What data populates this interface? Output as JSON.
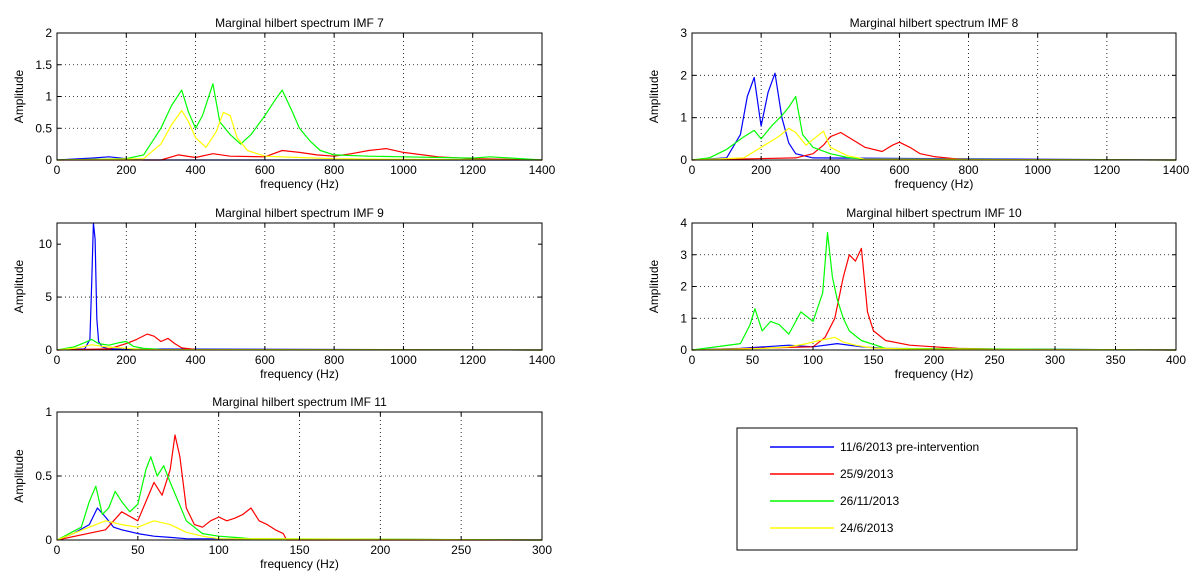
{
  "colors": {
    "pre_intervention": "#0000ff",
    "sep": "#ff0000",
    "nov": "#00ff00",
    "jun": "#ffff00",
    "grid": "#000000",
    "axes": "#000000"
  },
  "legend": {
    "entries": [
      {
        "label": "11/6/2013 pre-intervention",
        "color": "#0000ff"
      },
      {
        "label": "25/9/2013",
        "color": "#ff0000"
      },
      {
        "label": "26/11/2013",
        "color": "#00ff00"
      },
      {
        "label": "24/6/2013",
        "color": "#ffff00"
      }
    ],
    "placement": "bottom-right"
  },
  "chart_data": [
    {
      "type": "line",
      "title": "Marginal hilbert spectrum IMF 7",
      "xlabel": "frequency (Hz)",
      "ylabel": "Amplitude",
      "xlim": [
        0,
        1400
      ],
      "ylim": [
        0,
        2
      ],
      "xticks": [
        0,
        200,
        400,
        600,
        800,
        1000,
        1200,
        1400
      ],
      "yticks": [
        0,
        0.5,
        1,
        1.5,
        2
      ],
      "ytick_labels": [
        "0",
        "0.5",
        "1",
        "1.5",
        "2"
      ],
      "grid": true,
      "series": [
        {
          "name": "11/6/2013 pre-intervention",
          "color": "#0000ff",
          "x": [
            0,
            100,
            150,
            200,
            250,
            1400
          ],
          "y": [
            0,
            0.03,
            0.05,
            0.02,
            0,
            0
          ]
        },
        {
          "name": "25/9/2013",
          "color": "#ff0000",
          "x": [
            0,
            300,
            350,
            400,
            450,
            500,
            600,
            650,
            700,
            750,
            800,
            850,
            900,
            950,
            1000,
            1100,
            1200,
            1400
          ],
          "y": [
            0,
            0,
            0.08,
            0.04,
            0.1,
            0.06,
            0.05,
            0.15,
            0.12,
            0.08,
            0.06,
            0.1,
            0.15,
            0.18,
            0.12,
            0.05,
            0.02,
            0
          ]
        },
        {
          "name": "26/11/2013",
          "color": "#00ff00",
          "x": [
            0,
            200,
            250,
            300,
            330,
            360,
            380,
            400,
            420,
            450,
            470,
            500,
            530,
            560,
            600,
            630,
            650,
            680,
            700,
            730,
            760,
            800,
            900,
            1000,
            1200,
            1250,
            1400
          ],
          "y": [
            0,
            0.02,
            0.08,
            0.5,
            0.85,
            1.1,
            0.75,
            0.5,
            0.7,
            1.2,
            0.6,
            0.4,
            0.25,
            0.4,
            0.7,
            0.95,
            1.1,
            0.75,
            0.5,
            0.3,
            0.15,
            0.08,
            0.06,
            0.05,
            0.03,
            0.05,
            0
          ]
        },
        {
          "name": "24/6/2013",
          "color": "#ffff00",
          "x": [
            0,
            250,
            300,
            330,
            360,
            380,
            400,
            430,
            460,
            480,
            500,
            520,
            550,
            600,
            700,
            800,
            1000,
            1400
          ],
          "y": [
            0,
            0.02,
            0.25,
            0.55,
            0.78,
            0.6,
            0.35,
            0.2,
            0.45,
            0.75,
            0.7,
            0.35,
            0.15,
            0.06,
            0.04,
            0.02,
            0.01,
            0
          ]
        }
      ]
    },
    {
      "type": "line",
      "title": "Marginal hilbert spectrum IMF 8",
      "xlabel": "frequency (Hz)",
      "ylabel": "Amplitude",
      "xlim": [
        0,
        1400
      ],
      "ylim": [
        0,
        3
      ],
      "xticks": [
        0,
        200,
        400,
        600,
        800,
        1000,
        1200,
        1400
      ],
      "yticks": [
        0,
        1,
        2,
        3
      ],
      "ytick_labels": [
        "0",
        "1",
        "2",
        "3"
      ],
      "grid": true,
      "series": [
        {
          "name": "11/6/2013 pre-intervention",
          "color": "#0000ff",
          "x": [
            0,
            100,
            140,
            160,
            180,
            200,
            220,
            240,
            260,
            280,
            300,
            350,
            1400
          ],
          "y": [
            0,
            0.05,
            0.6,
            1.5,
            1.95,
            0.8,
            1.6,
            2.05,
            1.0,
            0.4,
            0.15,
            0.05,
            0
          ]
        },
        {
          "name": "25/9/2013",
          "color": "#ff0000",
          "x": [
            0,
            300,
            350,
            380,
            400,
            430,
            460,
            500,
            550,
            580,
            600,
            630,
            660,
            700,
            760,
            800,
            1400
          ],
          "y": [
            0,
            0.05,
            0.15,
            0.35,
            0.55,
            0.65,
            0.5,
            0.3,
            0.2,
            0.35,
            0.42,
            0.3,
            0.15,
            0.08,
            0.03,
            0.01,
            0
          ]
        },
        {
          "name": "26/11/2013",
          "color": "#00ff00",
          "x": [
            0,
            50,
            100,
            150,
            180,
            200,
            230,
            260,
            280,
            300,
            320,
            350,
            400,
            450,
            500,
            1400
          ],
          "y": [
            0,
            0.05,
            0.25,
            0.55,
            0.7,
            0.5,
            0.8,
            1.05,
            1.25,
            1.5,
            0.6,
            0.3,
            0.15,
            0.06,
            0.02,
            0
          ]
        },
        {
          "name": "24/6/2013",
          "color": "#ffff00",
          "x": [
            0,
            150,
            200,
            250,
            280,
            300,
            330,
            360,
            380,
            400,
            450,
            500,
            1400
          ],
          "y": [
            0,
            0.05,
            0.3,
            0.55,
            0.75,
            0.65,
            0.35,
            0.55,
            0.68,
            0.3,
            0.1,
            0.02,
            0
          ]
        }
      ]
    },
    {
      "type": "line",
      "title": "Marginal hilbert spectrum IMF 9",
      "xlabel": "frequency (Hz)",
      "ylabel": "Amplitude",
      "xlim": [
        0,
        1400
      ],
      "ylim": [
        0,
        12
      ],
      "xticks": [
        0,
        200,
        400,
        600,
        800,
        1000,
        1200,
        1400
      ],
      "yticks": [
        0,
        5,
        10
      ],
      "ytick_labels": [
        "0",
        "5",
        "10"
      ],
      "grid": true,
      "series": [
        {
          "name": "11/6/2013 pre-intervention",
          "color": "#0000ff",
          "x": [
            0,
            80,
            95,
            100,
            105,
            110,
            115,
            120,
            130,
            150,
            1400
          ],
          "y": [
            0,
            0.1,
            1.0,
            6.0,
            12.0,
            10.5,
            3.0,
            0.8,
            0.3,
            0.1,
            0
          ]
        },
        {
          "name": "25/9/2013",
          "color": "#ff0000",
          "x": [
            0,
            150,
            200,
            230,
            260,
            280,
            300,
            320,
            340,
            360,
            400,
            1400
          ],
          "y": [
            0,
            0.1,
            0.6,
            1.0,
            1.5,
            1.3,
            0.8,
            1.1,
            0.6,
            0.2,
            0.05,
            0
          ]
        },
        {
          "name": "26/11/2013",
          "color": "#00ff00",
          "x": [
            0,
            50,
            80,
            100,
            120,
            150,
            180,
            200,
            220,
            250,
            300,
            1400
          ],
          "y": [
            0,
            0.3,
            0.7,
            1.0,
            0.6,
            0.45,
            0.7,
            0.8,
            0.35,
            0.15,
            0.05,
            0
          ]
        },
        {
          "name": "24/6/2013",
          "color": "#ffff00",
          "x": [
            0,
            60,
            100,
            130,
            160,
            200,
            250,
            1400
          ],
          "y": [
            0,
            0.2,
            0.5,
            0.35,
            0.25,
            0.15,
            0.05,
            0
          ]
        }
      ]
    },
    {
      "type": "line",
      "title": "Marginal hilbert spectrum IMF 10",
      "xlabel": "frequency (Hz)",
      "ylabel": "Amplitude",
      "xlim": [
        0,
        400
      ],
      "ylim": [
        0,
        4
      ],
      "xticks": [
        0,
        50,
        100,
        150,
        200,
        250,
        300,
        350,
        400
      ],
      "yticks": [
        0,
        1,
        2,
        3,
        4
      ],
      "ytick_labels": [
        "0",
        "1",
        "2",
        "3",
        "4"
      ],
      "grid": true,
      "series": [
        {
          "name": "11/6/2013 pre-intervention",
          "color": "#0000ff",
          "x": [
            0,
            40,
            60,
            80,
            100,
            120,
            140,
            160,
            400
          ],
          "y": [
            0,
            0.05,
            0.1,
            0.15,
            0.1,
            0.2,
            0.1,
            0.05,
            0
          ]
        },
        {
          "name": "25/9/2013",
          "color": "#ff0000",
          "x": [
            0,
            100,
            110,
            118,
            125,
            130,
            135,
            140,
            145,
            150,
            160,
            180,
            200,
            220,
            260,
            400
          ],
          "y": [
            0,
            0.1,
            0.4,
            1.0,
            2.3,
            3.0,
            2.8,
            3.2,
            1.2,
            0.6,
            0.3,
            0.15,
            0.1,
            0.05,
            0.02,
            0
          ]
        },
        {
          "name": "26/11/2013",
          "color": "#00ff00",
          "x": [
            0,
            40,
            48,
            52,
            58,
            65,
            72,
            80,
            90,
            100,
            108,
            112,
            116,
            120,
            125,
            130,
            140,
            160,
            400
          ],
          "y": [
            0,
            0.2,
            0.8,
            1.3,
            0.6,
            0.9,
            0.8,
            0.5,
            1.2,
            0.9,
            1.8,
            3.7,
            2.3,
            1.6,
            1.0,
            0.6,
            0.3,
            0.05,
            0
          ]
        },
        {
          "name": "24/6/2013",
          "color": "#ffff00",
          "x": [
            0,
            60,
            80,
            95,
            105,
            112,
            118,
            125,
            135,
            150,
            180,
            250,
            400
          ],
          "y": [
            0,
            0.05,
            0.1,
            0.2,
            0.3,
            0.35,
            0.4,
            0.25,
            0.15,
            0.06,
            0.03,
            0.02,
            0
          ]
        }
      ]
    },
    {
      "type": "line",
      "title": "Marginal hilbert spectrum IMF 11",
      "xlabel": "frequency (Hz)",
      "ylabel": "Amplitude",
      "xlim": [
        0,
        300
      ],
      "ylim": [
        0,
        1
      ],
      "xticks": [
        0,
        50,
        100,
        150,
        200,
        250,
        300
      ],
      "yticks": [
        0,
        0.5,
        1
      ],
      "ytick_labels": [
        "0",
        "0.5",
        "1"
      ],
      "grid": true,
      "series": [
        {
          "name": "11/6/2013 pre-intervention",
          "color": "#0000ff",
          "x": [
            0,
            10,
            20,
            25,
            30,
            35,
            40,
            50,
            60,
            70,
            80,
            300
          ],
          "y": [
            0,
            0.05,
            0.12,
            0.25,
            0.18,
            0.1,
            0.08,
            0.05,
            0.03,
            0.02,
            0.01,
            0
          ]
        },
        {
          "name": "25/9/2013",
          "color": "#ff0000",
          "x": [
            0,
            30,
            40,
            50,
            55,
            60,
            65,
            70,
            73,
            76,
            80,
            85,
            90,
            95,
            100,
            105,
            110,
            115,
            120,
            125,
            130,
            135,
            140,
            142,
            300
          ],
          "y": [
            0,
            0.08,
            0.22,
            0.15,
            0.3,
            0.45,
            0.35,
            0.55,
            0.82,
            0.65,
            0.25,
            0.12,
            0.1,
            0.15,
            0.18,
            0.15,
            0.17,
            0.2,
            0.25,
            0.15,
            0.12,
            0.08,
            0.05,
            0,
            0
          ]
        },
        {
          "name": "26/11/2013",
          "color": "#00ff00",
          "x": [
            0,
            15,
            20,
            24,
            28,
            32,
            36,
            40,
            45,
            50,
            55,
            58,
            62,
            66,
            70,
            75,
            80,
            90,
            100,
            110,
            120,
            300
          ],
          "y": [
            0,
            0.1,
            0.3,
            0.42,
            0.2,
            0.25,
            0.38,
            0.3,
            0.22,
            0.28,
            0.55,
            0.65,
            0.5,
            0.58,
            0.45,
            0.3,
            0.15,
            0.05,
            0.03,
            0.02,
            0.01,
            0
          ]
        },
        {
          "name": "24/6/2013",
          "color": "#ffff00",
          "x": [
            0,
            10,
            20,
            30,
            40,
            50,
            60,
            70,
            80,
            90,
            100,
            300
          ],
          "y": [
            0,
            0.05,
            0.1,
            0.15,
            0.12,
            0.1,
            0.15,
            0.12,
            0.06,
            0.03,
            0.01,
            0
          ]
        }
      ]
    }
  ]
}
